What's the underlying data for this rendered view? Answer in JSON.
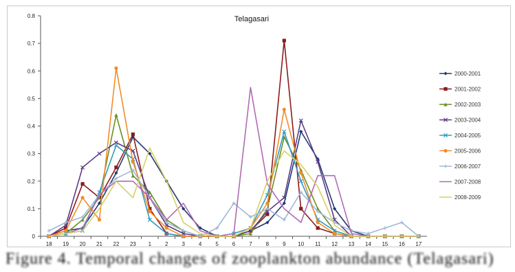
{
  "caption": "Figure 4. Temporal changes of zooplankton abundance (Telagasari)",
  "chart_data": {
    "type": "line",
    "title": "Telagasari",
    "xlabel": "",
    "ylabel": "",
    "ylim": [
      0,
      0.8
    ],
    "yticks": [
      "0",
      "0.1",
      "0.2",
      "0.3",
      "0.4",
      "0.5",
      "0.6",
      "0.7",
      "0.8"
    ],
    "categories": [
      "18",
      "19",
      "20",
      "21",
      "22",
      "23",
      "1",
      "2",
      "3",
      "4",
      "5",
      "6",
      "7",
      "8",
      "9",
      "10",
      "11",
      "12",
      "13",
      "14",
      "15",
      "16",
      "17"
    ],
    "grid": false,
    "legend_position": "right",
    "series": [
      {
        "name": "2000-2001",
        "color": "#1f3b73",
        "marker": "diamond",
        "values": [
          0,
          0.02,
          0.03,
          0.12,
          0.23,
          0.36,
          0.3,
          0.2,
          0.1,
          0.03,
          0,
          0,
          0.02,
          0.05,
          0.12,
          0.38,
          0.28,
          0.1,
          0.02,
          0,
          0,
          0,
          0
        ]
      },
      {
        "name": "2001-2002",
        "color": "#8b1a1a",
        "marker": "square",
        "values": [
          0,
          0.03,
          0.19,
          0.14,
          0.25,
          0.37,
          0.1,
          0.01,
          0,
          0,
          0,
          0,
          0.02,
          0.08,
          0.71,
          0.1,
          0.03,
          0.01,
          0,
          0,
          0,
          0,
          0
        ]
      },
      {
        "name": "2002-2003",
        "color": "#6b8e23",
        "marker": "triangle",
        "values": [
          0,
          0.01,
          0.06,
          0.14,
          0.44,
          0.22,
          0.16,
          0.06,
          0.02,
          0,
          0,
          0,
          0.01,
          0.1,
          0.36,
          0.24,
          0.1,
          0.02,
          0,
          0,
          0,
          0,
          0
        ]
      },
      {
        "name": "2003-2004",
        "color": "#5b3c88",
        "marker": "x",
        "values": [
          0,
          0.04,
          0.25,
          0.3,
          0.34,
          0.31,
          0.14,
          0.04,
          0.01,
          0,
          0,
          0,
          0.02,
          0.09,
          0.14,
          0.42,
          0.27,
          0.06,
          0,
          0,
          0,
          0,
          0
        ]
      },
      {
        "name": "2004-2005",
        "color": "#2e9bc4",
        "marker": "x",
        "values": [
          0,
          0.01,
          0.02,
          0.16,
          0.33,
          0.28,
          0.06,
          0.01,
          0,
          0,
          0,
          0.01,
          0.03,
          0.15,
          0.38,
          0.2,
          0.06,
          0.02,
          0,
          0,
          0,
          0,
          0
        ]
      },
      {
        "name": "2005-2006",
        "color": "#f28c28",
        "marker": "circle",
        "values": [
          0,
          0.02,
          0.14,
          0.06,
          0.61,
          0.27,
          0.09,
          0.03,
          0,
          0,
          0,
          0,
          0.03,
          0.12,
          0.46,
          0.23,
          0.05,
          0.01,
          0,
          0,
          0,
          0,
          0
        ]
      },
      {
        "name": "2006-2007",
        "color": "#9fb8d8",
        "marker": "plus",
        "values": [
          0.02,
          0.05,
          0.07,
          0.15,
          0.21,
          0.24,
          0.14,
          0.05,
          0.02,
          0,
          0.03,
          0.12,
          0.07,
          0.1,
          0.06,
          0.16,
          0.09,
          0.05,
          0.02,
          0.01,
          0.03,
          0.05,
          0
        ]
      },
      {
        "name": "2007-2008",
        "color": "#b06ab3",
        "marker": "none",
        "values": [
          0,
          0.01,
          0.03,
          0.15,
          0.2,
          0.2,
          0.14,
          0.06,
          0.12,
          0.02,
          0,
          0.01,
          0.54,
          0.19,
          0.1,
          0.05,
          0.22,
          0.22,
          0.01,
          0,
          0,
          0,
          0
        ]
      },
      {
        "name": "2008-2009",
        "color": "#d8cf66",
        "marker": "none",
        "values": [
          0,
          0.01,
          0.02,
          0.1,
          0.2,
          0.14,
          0.32,
          0.2,
          0.05,
          0.01,
          0,
          0,
          0.03,
          0.2,
          0.31,
          0.26,
          0.18,
          0.04,
          0,
          0,
          0,
          0,
          0
        ]
      }
    ]
  }
}
